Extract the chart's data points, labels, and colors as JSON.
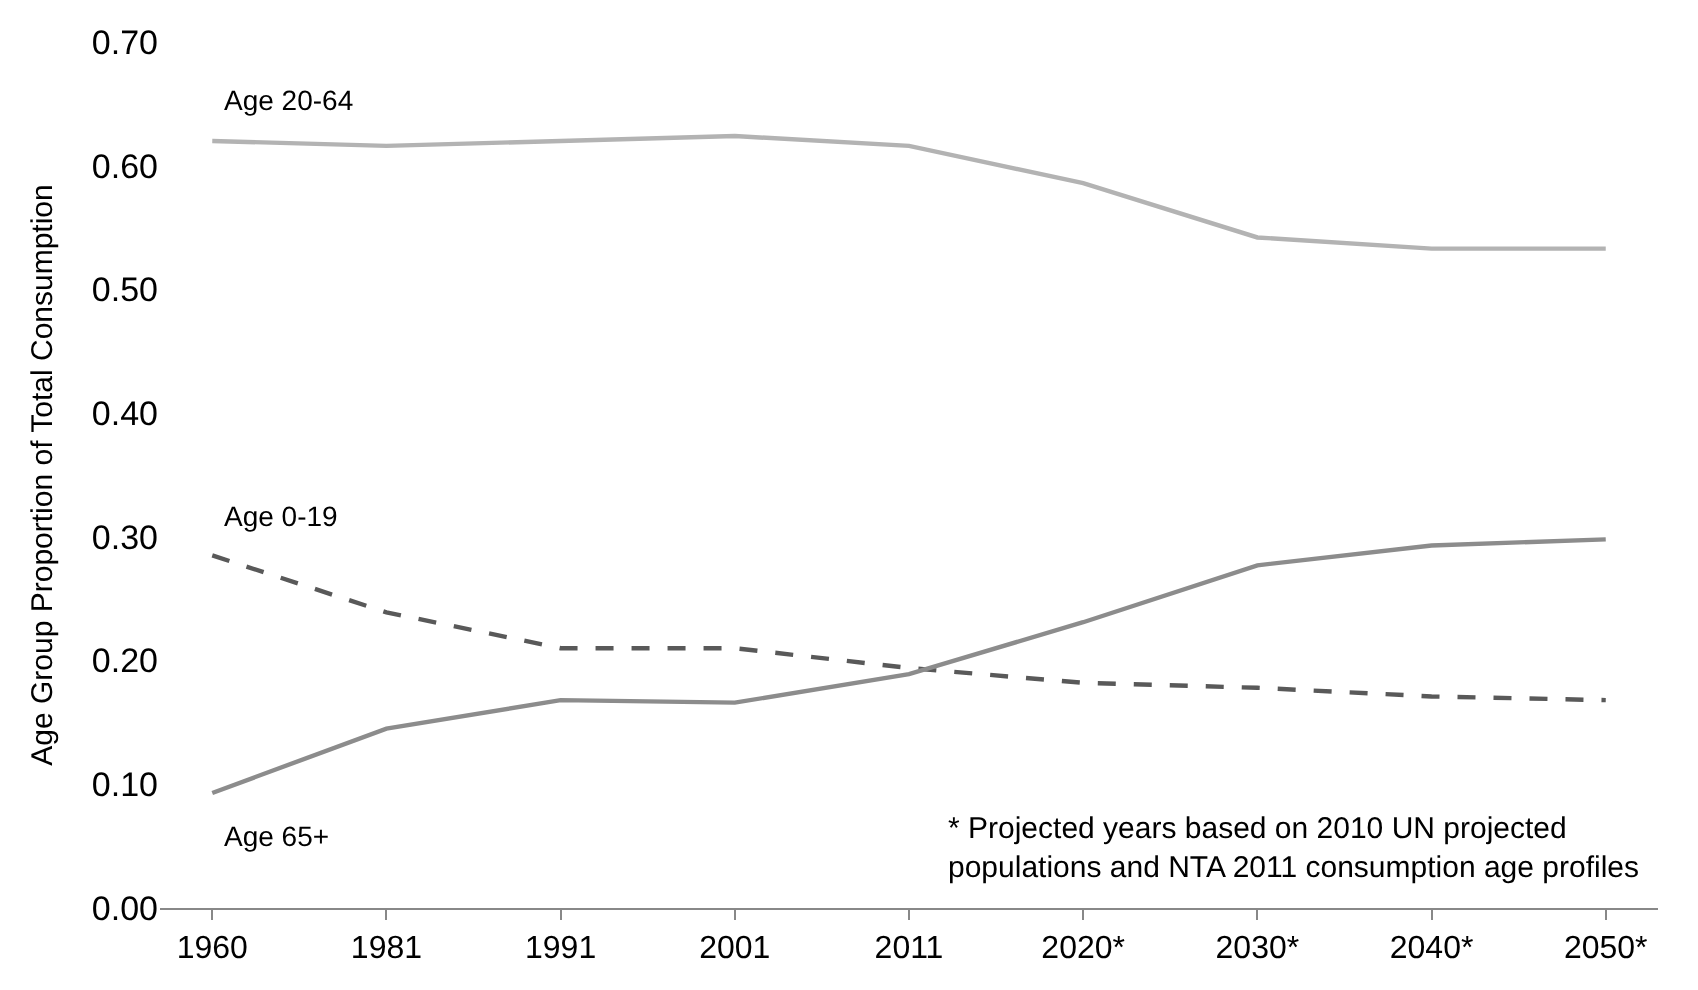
{
  "chart_data": {
    "type": "line",
    "ylabel": "Age Group Proportion of Total Consumption",
    "categories": [
      "1960",
      "1981",
      "1991",
      "2001",
      "2011",
      "2020*",
      "2030*",
      "2040*",
      "2050*"
    ],
    "series": [
      {
        "name": "Age 20-64",
        "color": "#b3b3b3",
        "line_style": "solid",
        "values": [
          0.62,
          0.616,
          0.62,
          0.624,
          0.616,
          0.586,
          0.542,
          0.533,
          0.533
        ]
      },
      {
        "name": "Age 0-19",
        "color": "#595959",
        "line_style": "dashed",
        "values": [
          0.285,
          0.239,
          0.21,
          0.21,
          0.194,
          0.182,
          0.178,
          0.171,
          0.168
        ]
      },
      {
        "name": "Age 65+",
        "color": "#8c8c8c",
        "line_style": "solid",
        "values": [
          0.093,
          0.145,
          0.168,
          0.166,
          0.189,
          0.231,
          0.277,
          0.293,
          0.298
        ]
      }
    ],
    "ylim": [
      0,
      0.7
    ],
    "yticks": [
      {
        "value": 0,
        "label": "0.00"
      },
      {
        "value": 0.1,
        "label": "0.10"
      },
      {
        "value": 0.2,
        "label": "0.20"
      },
      {
        "value": 0.3,
        "label": "0.30"
      },
      {
        "value": 0.4,
        "label": "0.40"
      },
      {
        "value": 0.5,
        "label": "0.50"
      },
      {
        "value": 0.6,
        "label": "0.60"
      },
      {
        "value": 0.7,
        "label": "0.70"
      }
    ],
    "grid": false,
    "legend": false,
    "marker": "none",
    "annotations": [
      "* Projected years based on 2010 UN projected\npopulations and NTA 2011 consumption age profiles"
    ]
  }
}
